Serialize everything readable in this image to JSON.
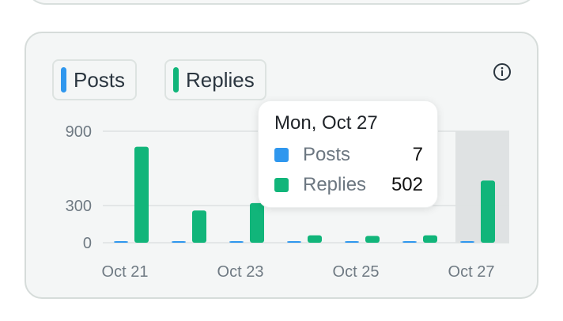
{
  "legend": [
    {
      "label": "Posts",
      "color": "#2f97ee"
    },
    {
      "label": "Replies",
      "color": "#11b57a"
    }
  ],
  "info_icon": "info-icon",
  "tooltip": {
    "title": "Mon, Oct 27",
    "rows": [
      {
        "label": "Posts",
        "value": "7",
        "color": "#2f97ee"
      },
      {
        "label": "Replies",
        "value": "502",
        "color": "#11b57a"
      }
    ]
  },
  "chart_data": {
    "type": "bar",
    "categories": [
      "Oct 21",
      "Oct 22",
      "Oct 23",
      "Oct 24",
      "Oct 25",
      "Oct 26",
      "Oct 27"
    ],
    "x_tick_labels": [
      "Oct 21",
      "Oct 23",
      "Oct 25",
      "Oct 27"
    ],
    "y_tick_labels": [
      "900",
      "300",
      "0"
    ],
    "y_ticks": [
      900,
      300,
      0
    ],
    "ylim": [
      0,
      900
    ],
    "grid": true,
    "legend_position": "top-left",
    "highlighted_category": "Oct 27",
    "series": [
      {
        "name": "Posts",
        "color": "#2f97ee",
        "values": [
          6,
          5,
          5,
          6,
          7,
          6,
          7
        ]
      },
      {
        "name": "Replies",
        "color": "#11b57a",
        "values": [
          775,
          260,
          320,
          60,
          55,
          60,
          502
        ]
      }
    ]
  }
}
